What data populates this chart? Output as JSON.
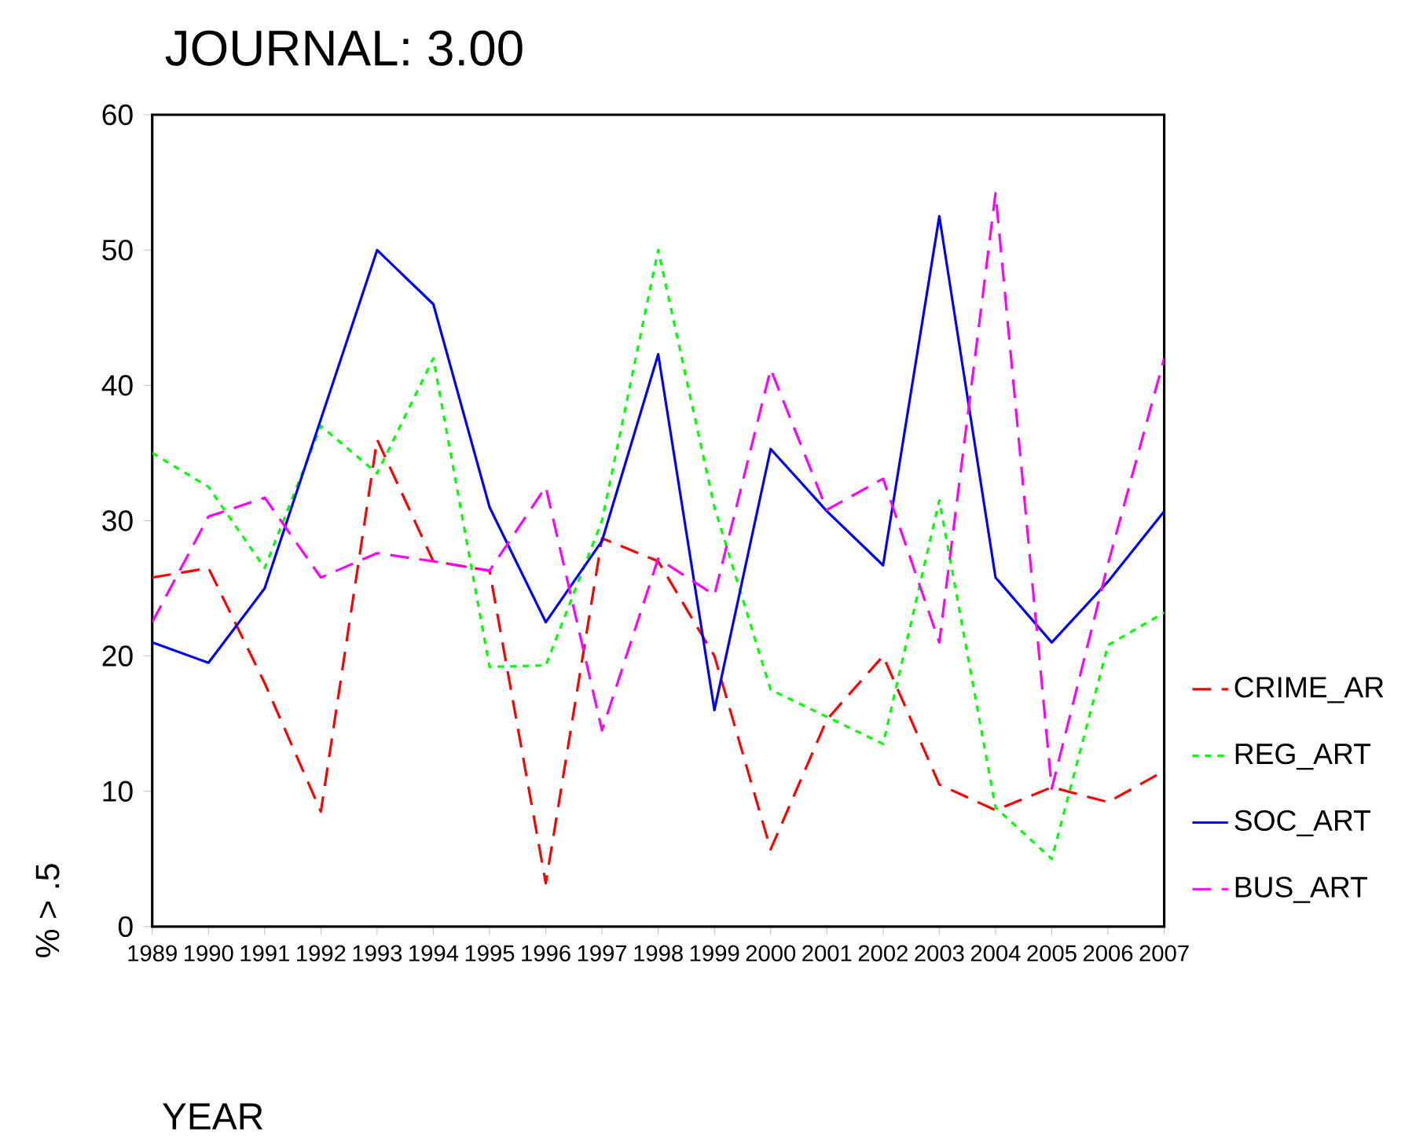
{
  "chart_data": {
    "type": "line",
    "title": "JOURNAL:      3.00",
    "xlabel": "YEAR",
    "ylabel": "% > .5",
    "x": [
      1989,
      1990,
      1991,
      1992,
      1993,
      1994,
      1995,
      1996,
      1997,
      1998,
      1999,
      2000,
      2001,
      2002,
      2003,
      2004,
      2005,
      2006,
      2007
    ],
    "xlim": [
      1989,
      2007
    ],
    "xticks": [
      1989,
      1990,
      1991,
      1992,
      1993,
      1994,
      1995,
      1996,
      1997,
      1998,
      1999,
      2000,
      2001,
      2002,
      2003,
      2004,
      2005,
      2006,
      2007
    ],
    "ylim": [
      0,
      60
    ],
    "yticks": [
      0,
      10,
      20,
      30,
      40,
      50,
      60
    ],
    "grid": false,
    "legend": "right",
    "marker": "none",
    "series": [
      {
        "name": "CRIME_AR",
        "color": "#ff0000",
        "line_style": "dashed",
        "values": [
          25.8,
          26.5,
          18,
          8.5,
          36,
          27,
          26.3,
          3.2,
          28.7,
          27,
          20,
          5.7,
          15.3,
          20,
          10.5,
          8.6,
          10.3,
          9.2,
          11.5
        ]
      },
      {
        "name": "REG_ART",
        "color": "#00ff00",
        "line_style": "dotted",
        "values": [
          35,
          32.5,
          26.5,
          37,
          33.5,
          42,
          19.2,
          19.3,
          30,
          50,
          31,
          17.5,
          15.5,
          13.5,
          31.5,
          8.8,
          5,
          20.8,
          23.2
        ]
      },
      {
        "name": "SOC_ART",
        "color": "#0000ff",
        "line_style": "solid",
        "values": [
          21,
          19.5,
          25,
          37.5,
          50,
          46,
          31,
          22.5,
          28.5,
          42.3,
          16,
          35.3,
          30.7,
          26.7,
          52.5,
          25.8,
          21,
          25.5,
          30.7
        ]
      },
      {
        "name": "BUS_ART",
        "color": "#ff00ff",
        "line_style": "dashed",
        "values": [
          22.5,
          30.3,
          31.7,
          25.8,
          27.6,
          27,
          26.3,
          32.5,
          14.5,
          27.2,
          24.5,
          41.2,
          30.8,
          33.1,
          21,
          54.2,
          10.2,
          26.8,
          42
        ]
      }
    ]
  }
}
